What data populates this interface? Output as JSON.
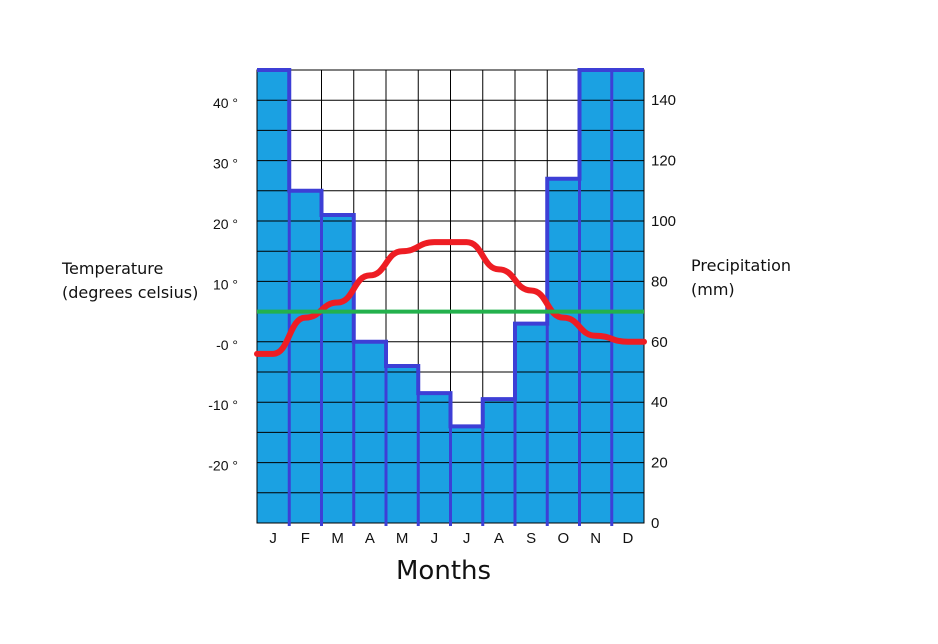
{
  "chart_data": {
    "type": "bar",
    "title": "",
    "xlabel": "Months",
    "ylabel_left": [
      "Temperature",
      "(degrees celsius)"
    ],
    "ylabel_right": [
      "Precipitation",
      "(mm)"
    ],
    "categories": [
      "J",
      "F",
      "M",
      "A",
      "M",
      "J",
      "J",
      "A",
      "S",
      "O",
      "N",
      "D"
    ],
    "precip_ticks": [
      "0",
      "20",
      "40",
      "60",
      "80",
      "100",
      "120",
      "140"
    ],
    "precip_tick_values": [
      0,
      20,
      40,
      60,
      80,
      100,
      120,
      140
    ],
    "temp_ticks": [
      "-20 °",
      "-10 °",
      "-0 °",
      "10 °",
      "20 °",
      "30 °",
      "40 °"
    ],
    "temp_tick_values": [
      -20,
      -10,
      0,
      10,
      20,
      30,
      40
    ],
    "temp_ylim": [
      -29.5,
      45.5
    ],
    "precip_ylim": [
      0,
      150
    ],
    "grid": true,
    "series": [
      {
        "type": "bar",
        "axis": "right",
        "color": "#1ba1e2",
        "edge": "#3d3fd6",
        "values": [
          150,
          110,
          102,
          60,
          52,
          43,
          32,
          41,
          66,
          114,
          150,
          150
        ]
      },
      {
        "type": "line",
        "axis": "left",
        "color": "#ee1d23",
        "values": [
          -1.5,
          4.5,
          7,
          11.5,
          15.5,
          17,
          17,
          12.5,
          9,
          4.5,
          1.5,
          0.5
        ]
      },
      {
        "type": "line",
        "axis": "right",
        "color": "#23b14d",
        "values": [
          70,
          70,
          70,
          70,
          70,
          70,
          70,
          70,
          70,
          70,
          70,
          70
        ]
      }
    ]
  }
}
